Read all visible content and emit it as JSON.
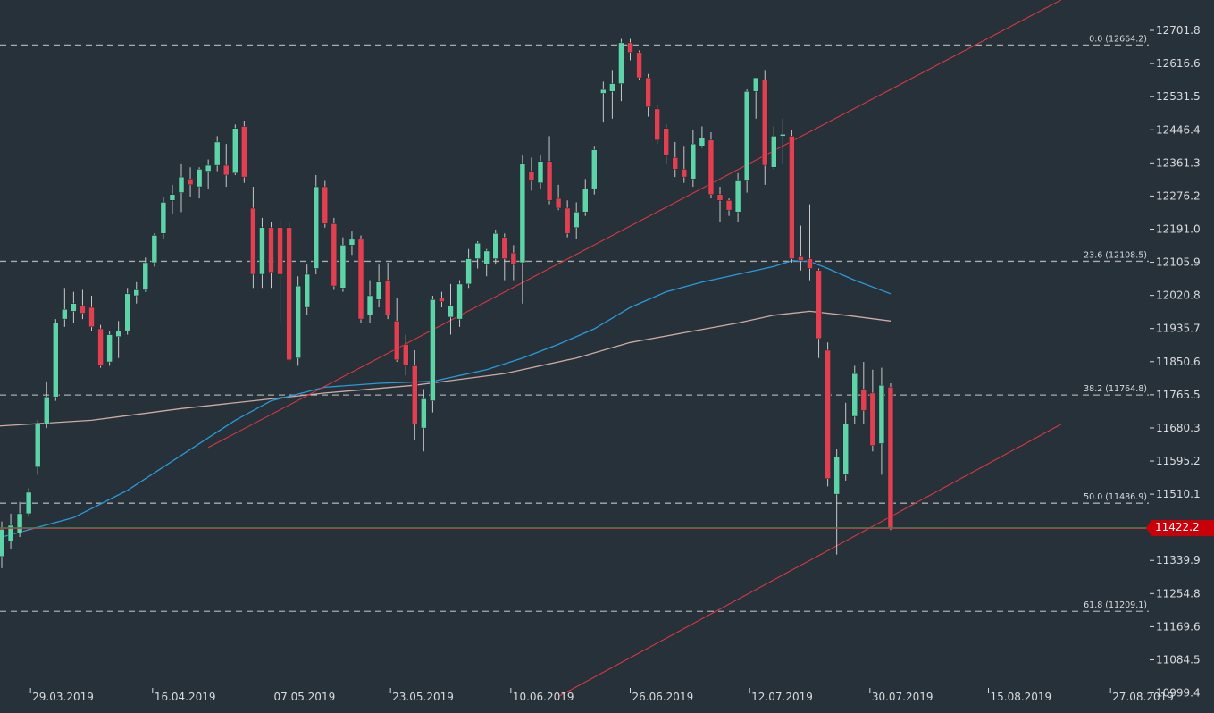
{
  "colors": {
    "background": "#26313a",
    "bull": "#5fd3a8",
    "bear": "#e04050",
    "wick": "#c8c8c8",
    "ma_fast": "#2a9ad8",
    "ma_slow": "#cfaaa2",
    "trendline": "#d8383f",
    "fib_line": "#a8acae",
    "axis_text": "#d9dcde",
    "price_badge": "#c8000a"
  },
  "chart_data": {
    "type": "candlestick",
    "title": "",
    "y_ticks": [
      "12701.8",
      "12616.6",
      "12531.5",
      "12446.4",
      "12361.3",
      "12276.2",
      "12191.0",
      "12105.9",
      "12020.8",
      "11935.7",
      "11850.6",
      "11765.5",
      "11680.3",
      "11595.2",
      "11510.1",
      "11339.9",
      "11254.8",
      "11169.6",
      "11084.5",
      "10999.4"
    ],
    "x_ticks": [
      "29.03.2019",
      "16.04.2019",
      "07.05.2019",
      "23.05.2019",
      "10.06.2019",
      "26.06.2019",
      "12.07.2019",
      "30.07.2019",
      "15.08.2019",
      "27.08.2019"
    ],
    "ylim": [
      10999.4,
      12770
    ],
    "last_price": "11422.2",
    "fib_levels": [
      {
        "label": "0.0 (12664.2)",
        "value": 12664.2
      },
      {
        "label": "23.6 (12108.5)",
        "value": 12108.5
      },
      {
        "label": "38.2 (11764.8)",
        "value": 11764.8
      },
      {
        "label": "50.0 (11486.9)",
        "value": 11486.9
      },
      {
        "label": "61.8 (11209.1)",
        "value": 11209.1
      }
    ],
    "candles": [
      {
        "x": 0,
        "o": 11350,
        "h": 11440,
        "l": 11320,
        "c": 11420
      },
      {
        "x": 1,
        "o": 11390,
        "h": 11460,
        "l": 11370,
        "c": 11430
      },
      {
        "x": 2,
        "o": 11410,
        "h": 11490,
        "l": 11400,
        "c": 11460
      },
      {
        "x": 3,
        "o": 11460,
        "h": 11525,
        "l": 11455,
        "c": 11515
      },
      {
        "x": 4,
        "o": 11580,
        "h": 11700,
        "l": 11560,
        "c": 11690
      },
      {
        "x": 5,
        "o": 11690,
        "h": 11800,
        "l": 11680,
        "c": 11760
      },
      {
        "x": 6,
        "o": 11760,
        "h": 11960,
        "l": 11750,
        "c": 11950
      },
      {
        "x": 7,
        "o": 11960,
        "h": 12040,
        "l": 11940,
        "c": 11985
      },
      {
        "x": 8,
        "o": 11980,
        "h": 12030,
        "l": 11950,
        "c": 12000
      },
      {
        "x": 9,
        "o": 11995,
        "h": 12035,
        "l": 11960,
        "c": 11975
      },
      {
        "x": 10,
        "o": 11990,
        "h": 12020,
        "l": 11930,
        "c": 11940
      },
      {
        "x": 11,
        "o": 11935,
        "h": 11945,
        "l": 11835,
        "c": 11840
      },
      {
        "x": 12,
        "o": 11850,
        "h": 11930,
        "l": 11840,
        "c": 11920
      },
      {
        "x": 13,
        "o": 11915,
        "h": 11955,
        "l": 11860,
        "c": 11930
      },
      {
        "x": 14,
        "o": 11930,
        "h": 12040,
        "l": 11920,
        "c": 12025
      },
      {
        "x": 15,
        "o": 12020,
        "h": 12055,
        "l": 12000,
        "c": 12035
      },
      {
        "x": 16,
        "o": 12035,
        "h": 12118,
        "l": 12030,
        "c": 12105
      },
      {
        "x": 17,
        "o": 12105,
        "h": 12180,
        "l": 12095,
        "c": 12175
      },
      {
        "x": 18,
        "o": 12180,
        "h": 12273,
        "l": 12165,
        "c": 12260
      },
      {
        "x": 19,
        "o": 12265,
        "h": 12305,
        "l": 12230,
        "c": 12280
      },
      {
        "x": 20,
        "o": 12285,
        "h": 12360,
        "l": 12235,
        "c": 12325
      },
      {
        "x": 21,
        "o": 12320,
        "h": 12350,
        "l": 12275,
        "c": 12305
      },
      {
        "x": 22,
        "o": 12300,
        "h": 12350,
        "l": 12270,
        "c": 12345
      },
      {
        "x": 23,
        "o": 12340,
        "h": 12370,
        "l": 12295,
        "c": 12355
      },
      {
        "x": 24,
        "o": 12355,
        "h": 12430,
        "l": 12340,
        "c": 12415
      },
      {
        "x": 25,
        "o": 12355,
        "h": 12410,
        "l": 12300,
        "c": 12330
      },
      {
        "x": 26,
        "o": 12335,
        "h": 12460,
        "l": 12330,
        "c": 12450
      },
      {
        "x": 27,
        "o": 12455,
        "h": 12470,
        "l": 12310,
        "c": 12325
      },
      {
        "x": 28,
        "o": 12245,
        "h": 12300,
        "l": 12040,
        "c": 12075
      },
      {
        "x": 29,
        "o": 12075,
        "h": 12220,
        "l": 12040,
        "c": 12195
      },
      {
        "x": 30,
        "o": 12195,
        "h": 12210,
        "l": 12040,
        "c": 12080
      },
      {
        "x": 31,
        "o": 12195,
        "h": 12215,
        "l": 11950,
        "c": 12075
      },
      {
        "x": 32,
        "o": 12195,
        "h": 12210,
        "l": 11850,
        "c": 11855
      },
      {
        "x": 33,
        "o": 11860,
        "h": 12070,
        "l": 11840,
        "c": 12045
      },
      {
        "x": 34,
        "o": 11990,
        "h": 12100,
        "l": 11970,
        "c": 12075
      },
      {
        "x": 35,
        "o": 12090,
        "h": 12330,
        "l": 12075,
        "c": 12300
      },
      {
        "x": 36,
        "o": 12300,
        "h": 12315,
        "l": 12195,
        "c": 12205
      },
      {
        "x": 37,
        "o": 12205,
        "h": 12220,
        "l": 12035,
        "c": 12045
      },
      {
        "x": 38,
        "o": 12040,
        "h": 12170,
        "l": 12030,
        "c": 12150
      },
      {
        "x": 39,
        "o": 12150,
        "h": 12185,
        "l": 12125,
        "c": 12165
      },
      {
        "x": 40,
        "o": 12165,
        "h": 12175,
        "l": 11950,
        "c": 11960
      },
      {
        "x": 41,
        "o": 11970,
        "h": 12060,
        "l": 11950,
        "c": 12020
      },
      {
        "x": 42,
        "o": 12010,
        "h": 12100,
        "l": 11990,
        "c": 12055
      },
      {
        "x": 43,
        "o": 12060,
        "h": 12105,
        "l": 11960,
        "c": 11970
      },
      {
        "x": 44,
        "o": 11955,
        "h": 12015,
        "l": 11850,
        "c": 11855
      },
      {
        "x": 45,
        "o": 11895,
        "h": 11920,
        "l": 11815,
        "c": 11840
      },
      {
        "x": 46,
        "o": 11840,
        "h": 11880,
        "l": 11650,
        "c": 11690
      },
      {
        "x": 47,
        "o": 11680,
        "h": 11780,
        "l": 11620,
        "c": 11755
      },
      {
        "x": 48,
        "o": 11750,
        "h": 12020,
        "l": 11720,
        "c": 12010
      },
      {
        "x": 49,
        "o": 12015,
        "h": 12030,
        "l": 11990,
        "c": 12005
      },
      {
        "x": 50,
        "o": 11965,
        "h": 12050,
        "l": 11920,
        "c": 11995
      },
      {
        "x": 51,
        "o": 11960,
        "h": 12060,
        "l": 11940,
        "c": 12050
      },
      {
        "x": 52,
        "o": 12050,
        "h": 12140,
        "l": 12040,
        "c": 12115
      },
      {
        "x": 53,
        "o": 12115,
        "h": 12160,
        "l": 12090,
        "c": 12155
      },
      {
        "x": 54,
        "o": 12100,
        "h": 12140,
        "l": 12070,
        "c": 12135
      },
      {
        "x": 55,
        "o": 12115,
        "h": 12190,
        "l": 12100,
        "c": 12180
      },
      {
        "x": 56,
        "o": 12170,
        "h": 12180,
        "l": 12060,
        "c": 12115
      },
      {
        "x": 57,
        "o": 12130,
        "h": 12150,
        "l": 12060,
        "c": 12100
      },
      {
        "x": 58,
        "o": 12105,
        "h": 12380,
        "l": 12000,
        "c": 12360
      },
      {
        "x": 59,
        "o": 12340,
        "h": 12375,
        "l": 12290,
        "c": 12315
      },
      {
        "x": 60,
        "o": 12310,
        "h": 12380,
        "l": 12295,
        "c": 12365
      },
      {
        "x": 61,
        "o": 12365,
        "h": 12430,
        "l": 12255,
        "c": 12265
      },
      {
        "x": 62,
        "o": 12270,
        "h": 12305,
        "l": 12240,
        "c": 12245
      },
      {
        "x": 63,
        "o": 12245,
        "h": 12265,
        "l": 12170,
        "c": 12180
      },
      {
        "x": 64,
        "o": 12195,
        "h": 12260,
        "l": 12165,
        "c": 12235
      },
      {
        "x": 65,
        "o": 12235,
        "h": 12320,
        "l": 12225,
        "c": 12295
      },
      {
        "x": 66,
        "o": 12295,
        "h": 12405,
        "l": 12280,
        "c": 12395
      },
      {
        "x": 67,
        "o": 12540,
        "h": 12570,
        "l": 12465,
        "c": 12550
      },
      {
        "x": 68,
        "o": 12545,
        "h": 12600,
        "l": 12475,
        "c": 12565
      },
      {
        "x": 69,
        "o": 12565,
        "h": 12680,
        "l": 12520,
        "c": 12670
      },
      {
        "x": 70,
        "o": 12670,
        "h": 12680,
        "l": 12625,
        "c": 12645
      },
      {
        "x": 71,
        "o": 12645,
        "h": 12650,
        "l": 12575,
        "c": 12580
      },
      {
        "x": 72,
        "o": 12580,
        "h": 12590,
        "l": 12480,
        "c": 12505
      },
      {
        "x": 73,
        "o": 12500,
        "h": 12510,
        "l": 12410,
        "c": 12420
      },
      {
        "x": 74,
        "o": 12450,
        "h": 12460,
        "l": 12360,
        "c": 12380
      },
      {
        "x": 75,
        "o": 12375,
        "h": 12415,
        "l": 12325,
        "c": 12345
      },
      {
        "x": 76,
        "o": 12345,
        "h": 12405,
        "l": 12310,
        "c": 12325
      },
      {
        "x": 77,
        "o": 12320,
        "h": 12445,
        "l": 12300,
        "c": 12410
      },
      {
        "x": 78,
        "o": 12405,
        "h": 12455,
        "l": 12400,
        "c": 12425
      },
      {
        "x": 79,
        "o": 12420,
        "h": 12440,
        "l": 12270,
        "c": 12280
      },
      {
        "x": 80,
        "o": 12280,
        "h": 12300,
        "l": 12210,
        "c": 12265
      },
      {
        "x": 81,
        "o": 12265,
        "h": 12270,
        "l": 12225,
        "c": 12240
      },
      {
        "x": 82,
        "o": 12235,
        "h": 12335,
        "l": 12210,
        "c": 12315
      },
      {
        "x": 83,
        "o": 12315,
        "h": 12550,
        "l": 12285,
        "c": 12545
      },
      {
        "x": 84,
        "o": 12545,
        "h": 12565,
        "l": 12475,
        "c": 12580
      },
      {
        "x": 85,
        "o": 12575,
        "h": 12600,
        "l": 12305,
        "c": 12355
      },
      {
        "x": 86,
        "o": 12350,
        "h": 12455,
        "l": 12345,
        "c": 12430
      },
      {
        "x": 87,
        "o": 12430,
        "h": 12475,
        "l": 12360,
        "c": 12435
      },
      {
        "x": 88,
        "o": 12430,
        "h": 12445,
        "l": 12105,
        "c": 12115
      },
      {
        "x": 89,
        "o": 12120,
        "h": 12200,
        "l": 12085,
        "c": 12110
      },
      {
        "x": 90,
        "o": 12115,
        "h": 12255,
        "l": 12060,
        "c": 12090
      },
      {
        "x": 91,
        "o": 12085,
        "h": 12090,
        "l": 11860,
        "c": 11910
      },
      {
        "x": 92,
        "o": 11880,
        "h": 11900,
        "l": 11530,
        "c": 11550
      },
      {
        "x": 93,
        "o": 11510,
        "h": 11625,
        "l": 11355,
        "c": 11605
      },
      {
        "x": 94,
        "o": 11560,
        "h": 11745,
        "l": 11545,
        "c": 11690
      },
      {
        "x": 95,
        "o": 11710,
        "h": 11840,
        "l": 11690,
        "c": 11820
      },
      {
        "x": 96,
        "o": 11780,
        "h": 11850,
        "l": 11690,
        "c": 11725
      },
      {
        "x": 97,
        "o": 11770,
        "h": 11830,
        "l": 11620,
        "c": 11635
      },
      {
        "x": 98,
        "o": 11640,
        "h": 11835,
        "l": 11560,
        "c": 11790
      },
      {
        "x": 99,
        "o": 11785,
        "h": 11795,
        "l": 11418,
        "c": 11422.2
      }
    ],
    "ma_fast": [
      [
        0,
        11400
      ],
      [
        8,
        11450
      ],
      [
        14,
        11520
      ],
      [
        20,
        11610
      ],
      [
        26,
        11700
      ],
      [
        30,
        11750
      ],
      [
        36,
        11785
      ],
      [
        42,
        11795
      ],
      [
        48,
        11800
      ],
      [
        54,
        11830
      ],
      [
        58,
        11860
      ],
      [
        62,
        11895
      ],
      [
        66,
        11935
      ],
      [
        70,
        11990
      ],
      [
        74,
        12030
      ],
      [
        78,
        12055
      ],
      [
        82,
        12075
      ],
      [
        86,
        12095
      ],
      [
        88,
        12110
      ],
      [
        90,
        12108
      ],
      [
        92,
        12090
      ],
      [
        95,
        12060
      ],
      [
        99,
        12025
      ]
    ],
    "ma_slow": [
      [
        -4,
        11680
      ],
      [
        10,
        11700
      ],
      [
        20,
        11730
      ],
      [
        28,
        11750
      ],
      [
        36,
        11770
      ],
      [
        46,
        11790
      ],
      [
        56,
        11820
      ],
      [
        64,
        11860
      ],
      [
        70,
        11900
      ],
      [
        76,
        11925
      ],
      [
        82,
        11950
      ],
      [
        86,
        11970
      ],
      [
        90,
        11980
      ],
      [
        94,
        11970
      ],
      [
        99,
        11955
      ]
    ],
    "trendlines": [
      {
        "x1": 23,
        "y1": 11630,
        "x2": 118,
        "y2": 12780
      },
      {
        "x1": 62,
        "y1": 10990,
        "x2": 118,
        "y2": 11690
      }
    ]
  }
}
